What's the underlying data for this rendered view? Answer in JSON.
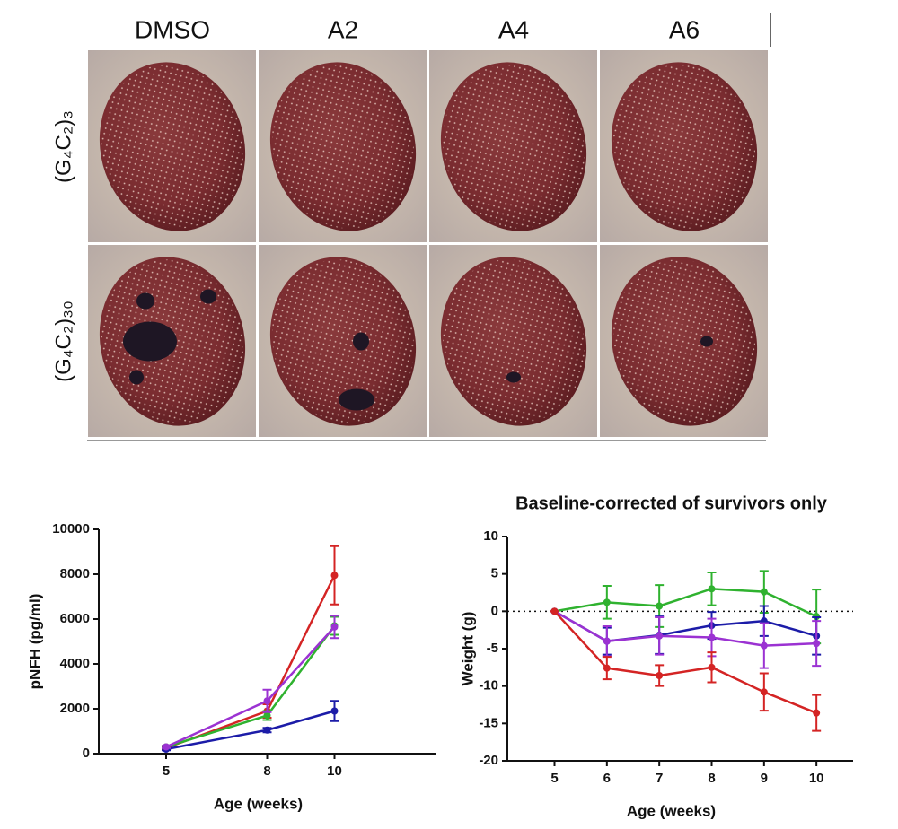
{
  "figure": {
    "columns": [
      "DMSO",
      "A2",
      "A4",
      "A6"
    ],
    "rows": [
      "(G₄C₂)₃",
      "(G₄C₂)₃₀"
    ]
  },
  "chart_data": [
    {
      "type": "line",
      "xlabel": "Age (weeks)",
      "ylabel": "pNFH (pg/ml)",
      "x": [
        5,
        8,
        10
      ],
      "xlim": [
        3,
        13
      ],
      "xticks": [
        5,
        8,
        10
      ],
      "ylim": [
        0,
        10000
      ],
      "yticks": [
        0,
        2000,
        4000,
        6000,
        8000,
        10000
      ],
      "series": [
        {
          "color": "#d42424",
          "values": [
            250,
            1900,
            7950
          ],
          "errors": [
            50,
            300,
            1300
          ]
        },
        {
          "color": "#2fb22f",
          "values": [
            300,
            1700,
            5700
          ],
          "errors": [
            50,
            200,
            400
          ]
        },
        {
          "color": "#1c1ca8",
          "values": [
            200,
            1050,
            1900
          ],
          "errors": [
            50,
            100,
            450
          ]
        },
        {
          "color": "#9b32d2",
          "values": [
            300,
            2350,
            5650
          ],
          "errors": [
            50,
            500,
            500
          ]
        }
      ]
    },
    {
      "type": "line",
      "title": "Baseline-corrected of survivors only",
      "xlabel": "Age (weeks)",
      "ylabel": "Weight  (g)",
      "x": [
        5,
        6,
        7,
        8,
        9,
        10
      ],
      "xlim": [
        4.1,
        10.7
      ],
      "xticks": [
        5,
        6,
        7,
        8,
        9,
        10
      ],
      "ylim": [
        -20,
        10
      ],
      "yticks": [
        -20,
        -15,
        -10,
        -5,
        0,
        5,
        10
      ],
      "reference_line": 0,
      "series": [
        {
          "color": "#2fb22f",
          "values": [
            0,
            1.2,
            0.7,
            3.0,
            2.6,
            -0.7
          ],
          "errors": [
            0,
            2.2,
            2.8,
            2.2,
            2.8,
            3.6
          ]
        },
        {
          "color": "#1c1ca8",
          "values": [
            0,
            -4.0,
            -3.2,
            -1.9,
            -1.3,
            -3.3
          ],
          "errors": [
            0,
            1.8,
            2.5,
            1.8,
            2.0,
            2.5
          ]
        },
        {
          "color": "#9b32d2",
          "values": [
            0,
            -4.0,
            -3.3,
            -3.5,
            -4.6,
            -4.3
          ],
          "errors": [
            0,
            2.0,
            2.5,
            2.5,
            3.0,
            3.0
          ]
        },
        {
          "color": "#d42424",
          "values": [
            0,
            -7.6,
            -8.6,
            -7.5,
            -10.8,
            -13.6
          ],
          "errors": [
            0,
            1.5,
            1.4,
            2.0,
            2.5,
            2.4
          ]
        }
      ]
    }
  ]
}
